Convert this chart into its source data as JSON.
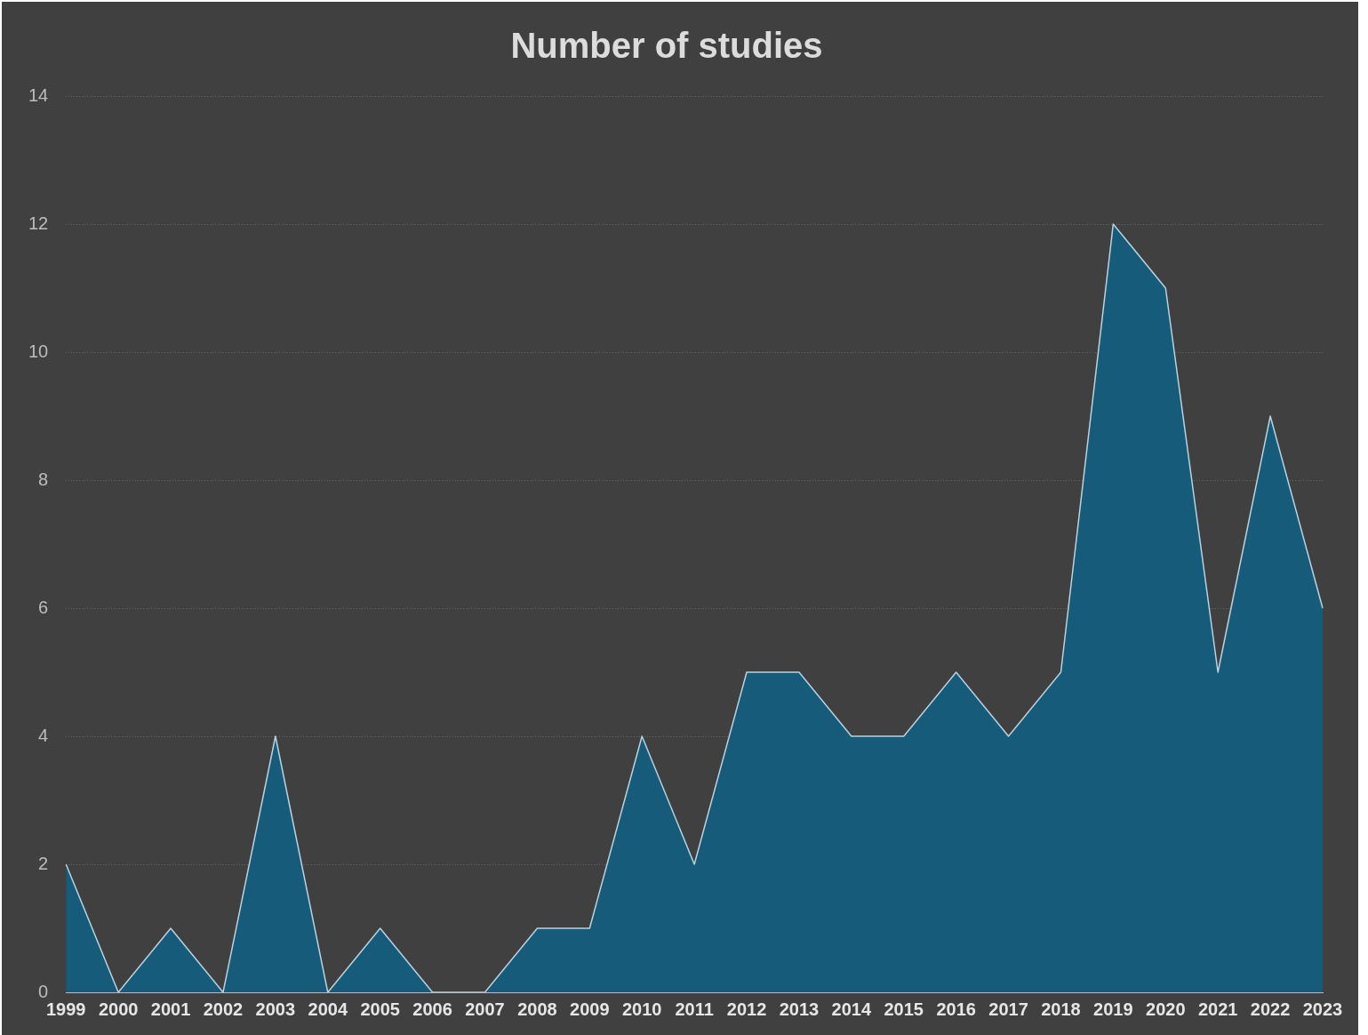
{
  "chart_data": {
    "type": "area",
    "title": "Number of studies",
    "categories": [
      "1999",
      "2000",
      "2001",
      "2002",
      "2003",
      "2004",
      "2005",
      "2006",
      "2007",
      "2008",
      "2009",
      "2010",
      "2011",
      "2012",
      "2013",
      "2014",
      "2015",
      "2016",
      "2017",
      "2018",
      "2019",
      "2020",
      "2021",
      "2022",
      "2023"
    ],
    "series": [
      {
        "color": "#175b7b",
        "values": [
          2,
          0,
          1,
          0,
          4,
          0,
          1,
          0,
          0,
          1,
          1,
          4,
          2,
          5,
          5,
          4,
          4,
          5,
          4,
          5,
          12,
          11,
          5,
          9,
          6
        ]
      }
    ],
    "ylim": [
      0,
      14
    ],
    "yticks": [
      0,
      2,
      4,
      6,
      8,
      10,
      12,
      14
    ],
    "grid": "y",
    "legend": false,
    "marker": "none"
  }
}
